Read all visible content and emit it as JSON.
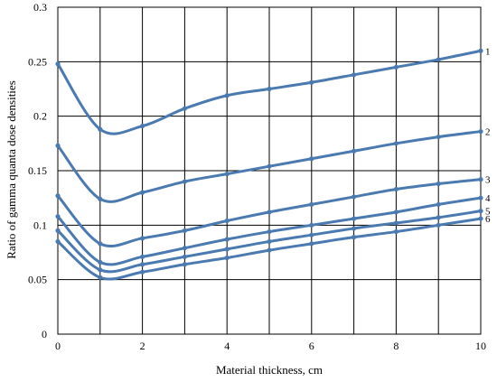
{
  "chart_data": {
    "type": "line",
    "xlabel": "Material thickness, cm",
    "ylabel": "Ratio of gamma quanta dose densities",
    "xlim": [
      0,
      10
    ],
    "ylim": [
      0,
      0.3
    ],
    "x_ticks": [
      0,
      2,
      4,
      6,
      8,
      10
    ],
    "y_ticks": [
      0,
      0.05,
      0.1,
      0.15,
      0.2,
      0.25,
      0.3
    ],
    "x_tick_labels": [
      "0",
      "2",
      "4",
      "6",
      "8",
      "10"
    ],
    "y_tick_labels": [
      "0",
      "0.05",
      "0.1",
      "0.15",
      "0.2",
      "0.25",
      "0.3"
    ],
    "grid": true,
    "line_color": "#4a7ab0",
    "x": [
      0,
      1,
      2,
      3,
      4,
      5,
      6,
      7,
      8,
      9,
      10
    ],
    "series": [
      {
        "name": "1",
        "values": [
          0.248,
          0.188,
          0.191,
          0.207,
          0.219,
          0.225,
          0.231,
          0.238,
          0.245,
          0.252,
          0.26
        ]
      },
      {
        "name": "2",
        "values": [
          0.173,
          0.124,
          0.13,
          0.14,
          0.147,
          0.154,
          0.161,
          0.168,
          0.175,
          0.181,
          0.186
        ]
      },
      {
        "name": "3",
        "values": [
          0.127,
          0.083,
          0.088,
          0.095,
          0.104,
          0.112,
          0.119,
          0.126,
          0.133,
          0.138,
          0.142
        ]
      },
      {
        "name": "4",
        "values": [
          0.108,
          0.066,
          0.071,
          0.079,
          0.087,
          0.094,
          0.1,
          0.106,
          0.112,
          0.119,
          0.125
        ]
      },
      {
        "name": "5",
        "values": [
          0.095,
          0.059,
          0.064,
          0.071,
          0.078,
          0.085,
          0.091,
          0.097,
          0.102,
          0.107,
          0.113
        ]
      },
      {
        "name": "6",
        "values": [
          0.085,
          0.052,
          0.057,
          0.064,
          0.07,
          0.077,
          0.083,
          0.089,
          0.094,
          0.1,
          0.106
        ]
      }
    ]
  }
}
